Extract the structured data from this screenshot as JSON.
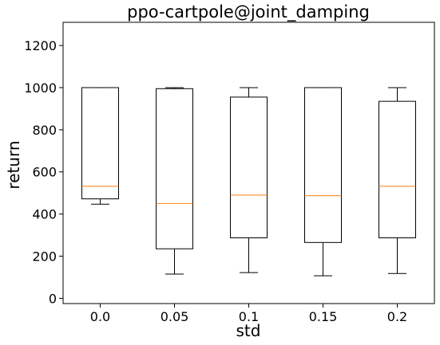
{
  "chart_data": {
    "type": "box",
    "title": "ppo-cartpole@joint_damping",
    "xlabel": "std",
    "ylabel": "return",
    "categories": [
      "0.0",
      "0.05",
      "0.1",
      "0.15",
      "0.2"
    ],
    "ylim": [
      -25,
      1310
    ],
    "yticks": [
      0,
      200,
      400,
      600,
      800,
      1000,
      1200
    ],
    "boxes": [
      {
        "whisker_low": 447,
        "q1": 472,
        "median": 532,
        "q3": 1000,
        "whisker_high": 1000
      },
      {
        "whisker_low": 115,
        "q1": 235,
        "median": 450,
        "q3": 995,
        "whisker_high": 1000
      },
      {
        "whisker_low": 122,
        "q1": 287,
        "median": 490,
        "q3": 955,
        "whisker_high": 1000
      },
      {
        "whisker_low": 107,
        "q1": 265,
        "median": 487,
        "q3": 1000,
        "whisker_high": 1000
      },
      {
        "whisker_low": 118,
        "q1": 287,
        "median": 532,
        "q3": 935,
        "whisker_high": 1000
      }
    ],
    "grid": false,
    "colors": {
      "box": "#000000",
      "median": "#ff7f0e"
    }
  }
}
